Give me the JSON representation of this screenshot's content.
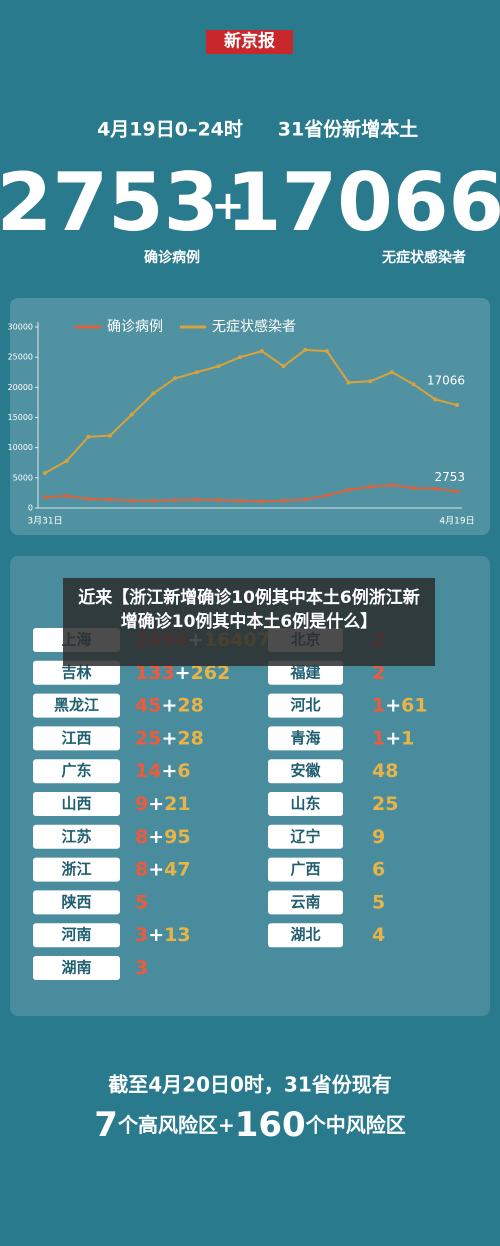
{
  "header": {
    "logo": "新京报",
    "date": "4月19日0–24时",
    "subtitle": "31省份新增本土",
    "confirmed": 2753,
    "plus": "+",
    "asymptomatic": 17066,
    "confirmed_label": "确诊病例",
    "asymptomatic_label": "无症状感染者"
  },
  "chart_data": {
    "type": "line",
    "categories": [
      "3月31日",
      null,
      null,
      null,
      null,
      null,
      null,
      null,
      null,
      null,
      null,
      null,
      null,
      null,
      null,
      null,
      null,
      null,
      null,
      "4月19日"
    ],
    "series": [
      {
        "name": "确诊病例",
        "color": "#e0603a",
        "values": [
          1800,
          2000,
          1500,
          1400,
          1200,
          1200,
          1300,
          1400,
          1300,
          1200,
          1100,
          1200,
          1400,
          2100,
          3000,
          3500,
          3800,
          3300,
          3200,
          2753
        ]
      },
      {
        "name": "无症状感染者",
        "color": "#d9a23a",
        "values": [
          5800,
          7800,
          11800,
          12000,
          15500,
          19000,
          21500,
          22500,
          23500,
          25000,
          26000,
          23500,
          26200,
          26000,
          20800,
          21000,
          22500,
          20500,
          18000,
          17066
        ]
      }
    ],
    "ylim": [
      0,
      30000
    ],
    "yticks": [
      0,
      5000,
      10000,
      15000,
      20000,
      25000,
      30000
    ]
  },
  "overlay": "近来【浙江新增确诊10例其中本土6例浙江新增确诊10例其中本土6例是什么】",
  "table": {
    "left": [
      [
        "上海",
        2494,
        16407
      ],
      [
        "吉林",
        133,
        262
      ],
      [
        "黑龙江",
        45,
        28
      ],
      [
        "江西",
        25,
        28
      ],
      [
        "广东",
        14,
        6
      ],
      [
        "山西",
        9,
        21
      ],
      [
        "江苏",
        8,
        95
      ],
      [
        "浙江",
        8,
        47
      ],
      [
        "陕西",
        5,
        null
      ],
      [
        "河南",
        3,
        13
      ],
      [
        "湖南",
        3,
        null
      ]
    ],
    "right": [
      [
        "北京",
        2,
        null
      ],
      [
        "福建",
        2,
        null
      ],
      [
        "河北",
        1,
        61
      ],
      [
        "青海",
        1,
        1
      ],
      [
        "安徽",
        null,
        48
      ],
      [
        "山东",
        null,
        25
      ],
      [
        "辽宁",
        null,
        9
      ],
      [
        "广西",
        null,
        6
      ],
      [
        "云南",
        null,
        5
      ],
      [
        "湖北",
        null,
        4
      ]
    ]
  },
  "footer": {
    "line1": "截至4月20日0时，31省份现有",
    "high": 7,
    "high_label": "个高风险区+",
    "mid": 160,
    "mid_label": "个中风险区"
  }
}
